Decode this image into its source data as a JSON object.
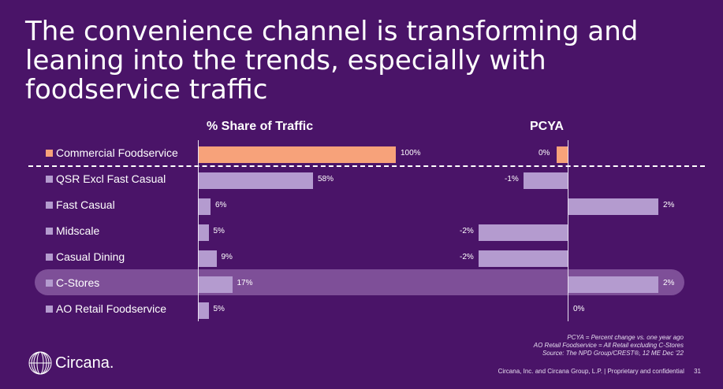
{
  "title": "The convenience channel is transforming and leaning into the trends, especially with foodservice traffic",
  "chart_data": [
    {
      "type": "bar",
      "orientation": "horizontal",
      "title": "% Share of Traffic",
      "categories": [
        "Commercial Foodservice",
        "QSR Excl Fast Casual",
        "Fast Casual",
        "Midscale",
        "Casual Dining",
        "C-Stores",
        "AO Retail Foodservice"
      ],
      "values": [
        100,
        58,
        6,
        5,
        9,
        17,
        5
      ],
      "value_labels": [
        "100%",
        "58%",
        "6%",
        "5%",
        "9%",
        "17%",
        "5%"
      ],
      "xlim": [
        0,
        100
      ]
    },
    {
      "type": "bar",
      "orientation": "horizontal",
      "title": "PCYA",
      "categories": [
        "Commercial Foodservice",
        "QSR Excl Fast Casual",
        "Fast Casual",
        "Midscale",
        "Casual Dining",
        "C-Stores",
        "AO Retail Foodservice"
      ],
      "values": [
        0,
        -1,
        2,
        -2,
        -2,
        2,
        0
      ],
      "value_labels": [
        "0%",
        "-1%",
        "2%",
        "-2%",
        "-2%",
        "2%",
        "0%"
      ]
    }
  ],
  "highlight_category": "C-Stores",
  "colors": {
    "background": "#4a1468",
    "accent": "#f7a27a",
    "bar": "#b49bcf",
    "highlight": "#8a5fa6"
  },
  "footnotes": [
    "PCYA = Percent change vs. one year ago",
    "AO Retail Foodservice = All Retail excluding C-Stores",
    "Source: The NPD Group/CREST®, 12 ME Dec '22"
  ],
  "footer": "Circana, Inc. and Circana Group, L.P. | Proprietary and confidential",
  "page_number": "31",
  "logo_text": "Circana."
}
